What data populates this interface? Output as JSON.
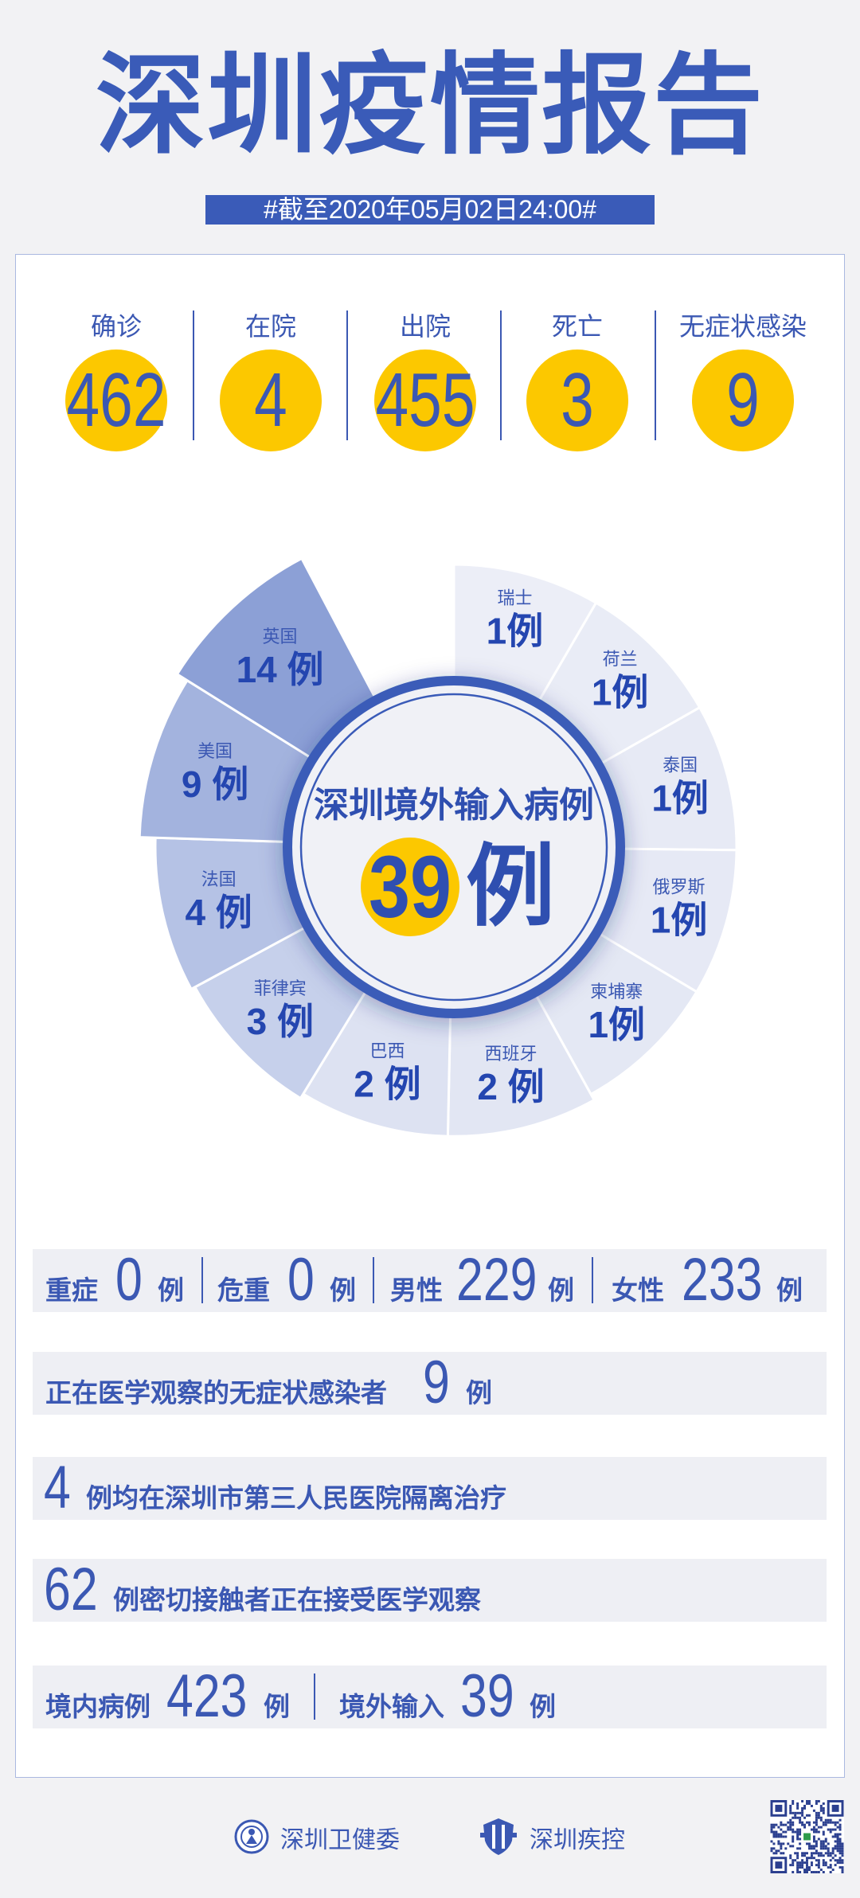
{
  "header": {
    "title": "深圳疫情报告",
    "date_banner": "#截至2020年05月02日24:00#"
  },
  "stats": [
    {
      "label": "确诊",
      "value": "462"
    },
    {
      "label": "在院",
      "value": "4"
    },
    {
      "label": "出院",
      "value": "455"
    },
    {
      "label": "死亡",
      "value": "3"
    },
    {
      "label": "无症状感染",
      "value": "9"
    }
  ],
  "colors": {
    "brand_blue": "#3a5bb8",
    "highlight_yellow": "#fcc800",
    "background": "#f2f2f4"
  },
  "chart_data": {
    "type": "pie",
    "variant": "nightingale-rose",
    "title": "深圳境外输入病例",
    "total": "39",
    "unit": "例",
    "categories": [
      "瑞士",
      "荷兰",
      "泰国",
      "俄罗斯",
      "柬埔寨",
      "西班牙",
      "巴西",
      "菲律宾",
      "法国",
      "美国",
      "英国"
    ],
    "values": [
      1,
      1,
      1,
      1,
      1,
      2,
      2,
      3,
      4,
      9,
      14
    ],
    "colors": [
      "#eceef7",
      "#e9ecf6",
      "#e7eaf5",
      "#e6e9f5",
      "#e4e8f4",
      "#e2e6f3",
      "#dde2f2",
      "#c6d0eb",
      "#b5c2e5",
      "#a3b3de",
      "#8ca0d6"
    ]
  },
  "rows": {
    "r1": {
      "severe_label": "重症",
      "severe": "0",
      "critical_label": "危重",
      "critical": "0",
      "male_label": "男性",
      "male": "229",
      "female_label": "女性",
      "female": "233",
      "unit": "例"
    },
    "r2": {
      "label": "正在医学观察的无症状感染者",
      "value": "9",
      "unit": "例"
    },
    "r3": {
      "value": "4",
      "text": "例均在深圳市第三人民医院隔离治疗"
    },
    "r4": {
      "value": "62",
      "text": "例密切接触者正在接受医学观察"
    },
    "r5": {
      "local_label": "境内病例",
      "local": "423",
      "imported_label": "境外输入",
      "imported": "39",
      "unit": "例"
    }
  },
  "footer": {
    "org1": "深圳卫健委",
    "org2": "深圳疾控"
  }
}
